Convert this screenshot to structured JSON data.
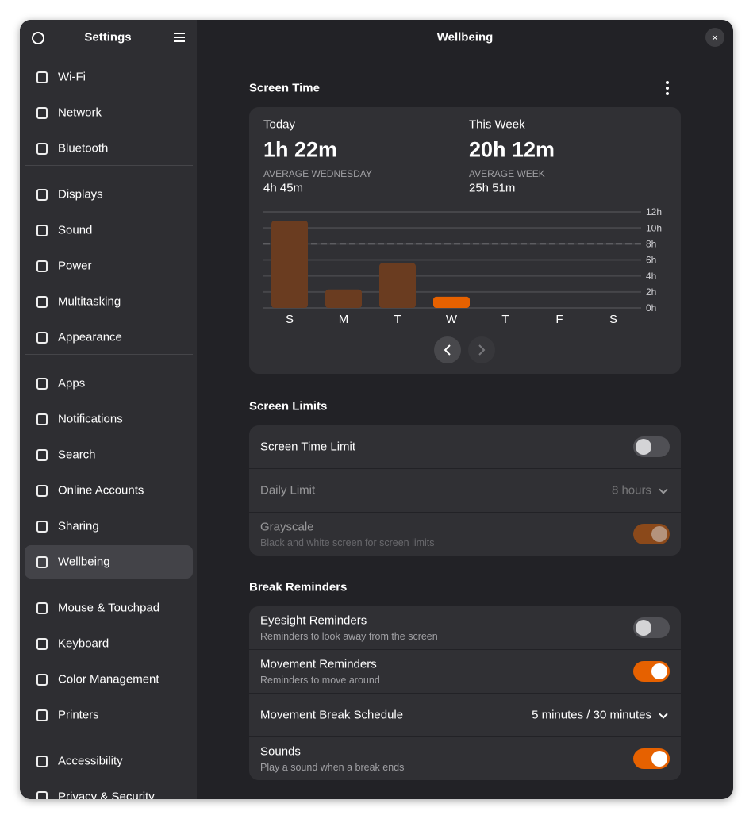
{
  "sidebar": {
    "title": "Settings",
    "groups": [
      [
        "Wi-Fi",
        "Network",
        "Bluetooth"
      ],
      [
        "Displays",
        "Sound",
        "Power",
        "Multitasking",
        "Appearance"
      ],
      [
        "Apps",
        "Notifications",
        "Search",
        "Online Accounts",
        "Sharing",
        "Wellbeing"
      ],
      [
        "Mouse & Touchpad",
        "Keyboard",
        "Color Management",
        "Printers"
      ],
      [
        "Accessibility",
        "Privacy & Security"
      ]
    ],
    "selected": [
      2,
      5
    ]
  },
  "header": {
    "title": "Wellbeing"
  },
  "screen_time": {
    "title": "Screen Time",
    "today": {
      "label": "Today",
      "value": "1h 22m",
      "average_label": "AVERAGE WEDNESDAY",
      "average": "4h 45m"
    },
    "week": {
      "label": "This Week",
      "value": "20h 12m",
      "average_label": "AVERAGE WEEK",
      "average": "25h 51m"
    }
  },
  "chart_data": {
    "type": "bar",
    "categories": [
      "S",
      "M",
      "T",
      "W",
      "T",
      "F",
      "S"
    ],
    "values": [
      10.9,
      2.3,
      5.6,
      1.4,
      null,
      null,
      null
    ],
    "color": "#6a3c20",
    "highlight_color": "#e66100",
    "highlight_index": 3,
    "ylim": [
      0,
      12
    ],
    "yticks": [
      {
        "value": 0,
        "label": "0h"
      },
      {
        "value": 2,
        "label": "2h"
      },
      {
        "value": 4,
        "label": "4h"
      },
      {
        "value": 6,
        "label": "6h"
      },
      {
        "value": 8,
        "label": "8h"
      },
      {
        "value": 10,
        "label": "10h"
      },
      {
        "value": 12,
        "label": "12h"
      }
    ],
    "grid": true,
    "reference_line": 8
  },
  "sections": [
    {
      "title": "Screen Limits",
      "rows": [
        {
          "title": "Screen Time Limit",
          "switch": false
        },
        {
          "title": "Daily Limit",
          "value": "8 hours",
          "dropdown": true,
          "dimmed": true
        },
        {
          "title": "Grayscale",
          "subtitle": "Black and white screen for screen limits",
          "switch": true,
          "dimmed": true
        }
      ]
    },
    {
      "title": "Break Reminders",
      "rows": [
        {
          "title": "Eyesight Reminders",
          "subtitle": "Reminders to look away from the screen",
          "switch": false
        },
        {
          "title": "Movement Reminders",
          "subtitle": "Reminders to move around",
          "switch": true
        },
        {
          "title": "Movement Break Schedule",
          "value": "5 minutes / 30 minutes",
          "dropdown": true
        },
        {
          "title": "Sounds",
          "subtitle": "Play a sound when a break ends",
          "switch": true
        }
      ]
    }
  ]
}
